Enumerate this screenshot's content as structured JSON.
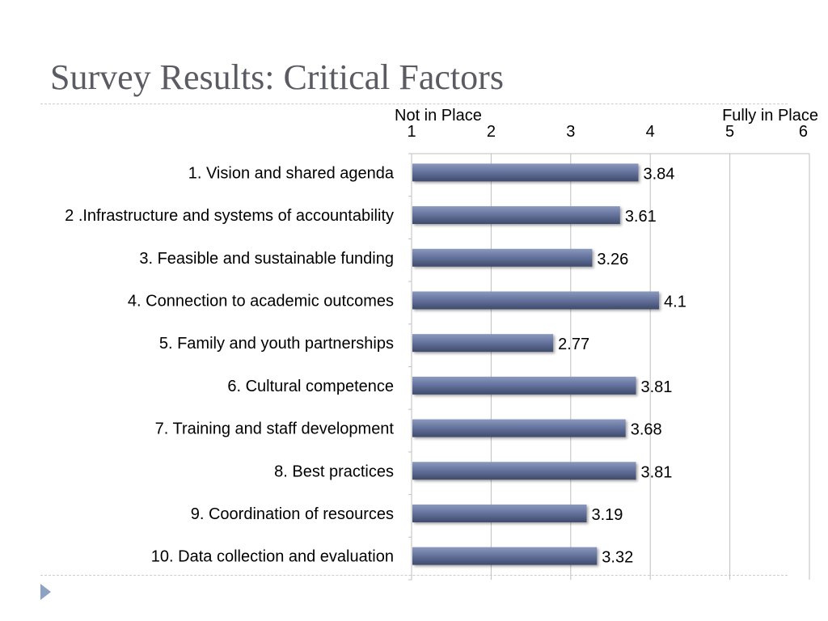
{
  "slide": {
    "title": "Survey Results: Critical Factors"
  },
  "colors": {
    "title": "#5b5b63",
    "bar": "#66759f",
    "bar_highlight": "#8c99be",
    "bar_shadow": "#3f4a6b",
    "grid": "#bfbfbf",
    "accent": "#8ea2c3"
  },
  "icons": {
    "bullet": "triangle-bullet-icon"
  },
  "chart_data": {
    "type": "bar",
    "orientation": "horizontal",
    "title": "",
    "scale_low_label": "Not in Place",
    "scale_high_label": "Fully in Place",
    "xlim": [
      1,
      6
    ],
    "ticks": [
      1,
      2,
      3,
      4,
      5,
      6
    ],
    "tick_labels": [
      "1",
      "2",
      "3",
      "4",
      "5",
      "6"
    ],
    "grid": true,
    "categories": [
      "1. Vision and shared agenda",
      "2 .Infrastructure and systems of accountability",
      "3. Feasible and sustainable funding",
      "4. Connection to academic outcomes",
      "5. Family and youth partnerships",
      "6. Cultural competence",
      "7. Training and staff development",
      "8. Best practices",
      "9. Coordination of resources",
      "10. Data collection and evaluation"
    ],
    "values": [
      3.84,
      3.61,
      3.26,
      4.1,
      2.77,
      3.81,
      3.68,
      3.81,
      3.19,
      3.32
    ],
    "value_labels": [
      "3.84",
      "3.61",
      "3.26",
      "4.1",
      "2.77",
      "3.81",
      "3.68",
      "3.81",
      "3.19",
      "3.32"
    ]
  }
}
